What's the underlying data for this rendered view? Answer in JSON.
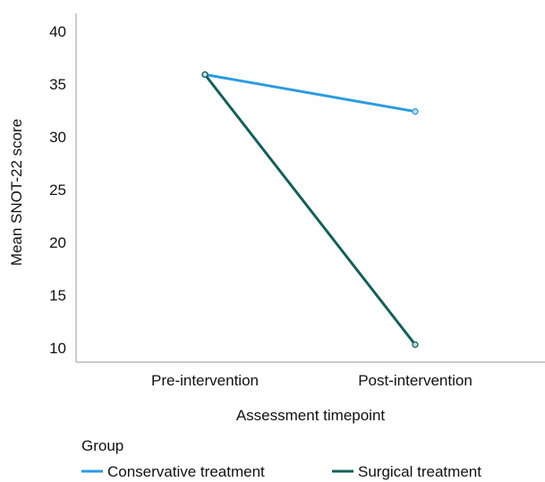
{
  "chart_data": {
    "type": "line",
    "title": "",
    "xlabel": "Assessment timepoint",
    "ylabel": "Mean SNOT-22 score",
    "categories": [
      "Pre-intervention",
      "Post-intervention"
    ],
    "ylim": [
      9,
      41
    ],
    "yticks": [
      10,
      15,
      20,
      25,
      30,
      35,
      40
    ],
    "grid": false,
    "legend": {
      "title": "Group",
      "position": "bottom"
    },
    "series": [
      {
        "name": "Conservative treatment",
        "values": [
          35.9,
          32.4
        ],
        "color": "#2a9be0"
      },
      {
        "name": "Surgical treatment",
        "values": [
          35.9,
          10.3
        ],
        "color": "#155e5a"
      }
    ]
  }
}
